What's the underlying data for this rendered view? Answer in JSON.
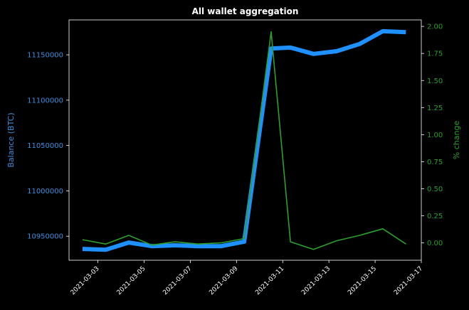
{
  "chart_data": {
    "type": "line",
    "title": "All wallet aggregation",
    "x": [
      "2021-03-02T08:00",
      "2021-03-03T08:00",
      "2021-03-04T08:00",
      "2021-03-05T08:00",
      "2021-03-06T08:00",
      "2021-03-07T08:00",
      "2021-03-08T08:00",
      "2021-03-09T08:00",
      "2021-03-10T12:00",
      "2021-03-11T08:00",
      "2021-03-12T08:00",
      "2021-03-13T08:00",
      "2021-03-14T08:00",
      "2021-03-15T08:00",
      "2021-03-16T08:00"
    ],
    "x_ticks": [
      "2021-03-03",
      "2021-03-05",
      "2021-03-07",
      "2021-03-09",
      "2021-03-11",
      "2021-03-13",
      "2021-03-15",
      "2021-03-17"
    ],
    "xlim": [
      "2021-03-01T18:00",
      "2021-03-17T00:00"
    ],
    "ylabel": "Balance (BTC)",
    "ylim": [
      10923500,
      11188500
    ],
    "y_ticks": [
      10950000,
      11000000,
      11050000,
      11100000,
      11150000
    ],
    "y2label": "% change",
    "y2lim": [
      -0.16,
      2.06
    ],
    "y2_ticks": [
      "0.00",
      "0.25",
      "0.50",
      "0.75",
      "1.00",
      "1.25",
      "1.50",
      "1.75",
      "2.00"
    ],
    "series": [
      {
        "axis": "left",
        "color": "#1e90ff",
        "values": [
          10936000,
          10935000,
          10943000,
          10939000,
          10940000,
          10939000,
          10939000,
          10944000,
          11157000,
          11158000,
          11151000,
          11154000,
          11162000,
          11176000,
          11175000
        ]
      },
      {
        "axis": "right",
        "color": "#2ca02c",
        "values": [
          0.03,
          -0.01,
          0.07,
          -0.02,
          0.01,
          -0.01,
          0.0,
          0.04,
          1.95,
          0.01,
          -0.06,
          0.02,
          0.07,
          0.13,
          -0.01
        ]
      }
    ],
    "grid": false,
    "left_color": "#3d8fe0",
    "right_color": "#2ca02c"
  }
}
